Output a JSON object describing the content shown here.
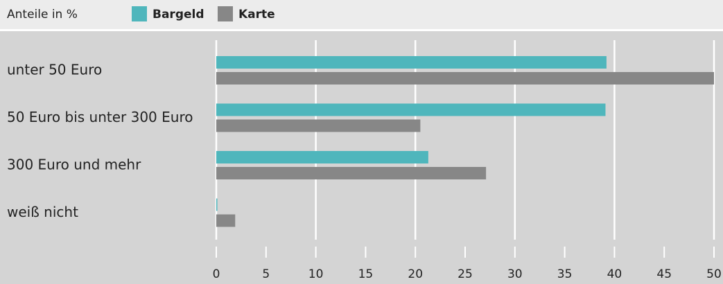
{
  "chart_data": {
    "type": "hbar",
    "axis_label": "Anteile in %",
    "categories": [
      "unter 50 Euro",
      "50 Euro bis unter 300 Euro",
      "300 Euro und mehr",
      "weiß nicht"
    ],
    "series": [
      {
        "name": "Bargeld",
        "color": "#4fb6bc",
        "values": [
          39.2,
          39.1,
          21.3,
          0.1
        ]
      },
      {
        "name": "Karte",
        "color": "#878787",
        "values": [
          50,
          20.5,
          27.1,
          1.9
        ]
      }
    ],
    "xlim": [
      0,
      50
    ],
    "xticks": [
      0,
      5,
      10,
      15,
      20,
      25,
      30,
      35,
      40,
      45,
      50
    ],
    "grid": true
  }
}
